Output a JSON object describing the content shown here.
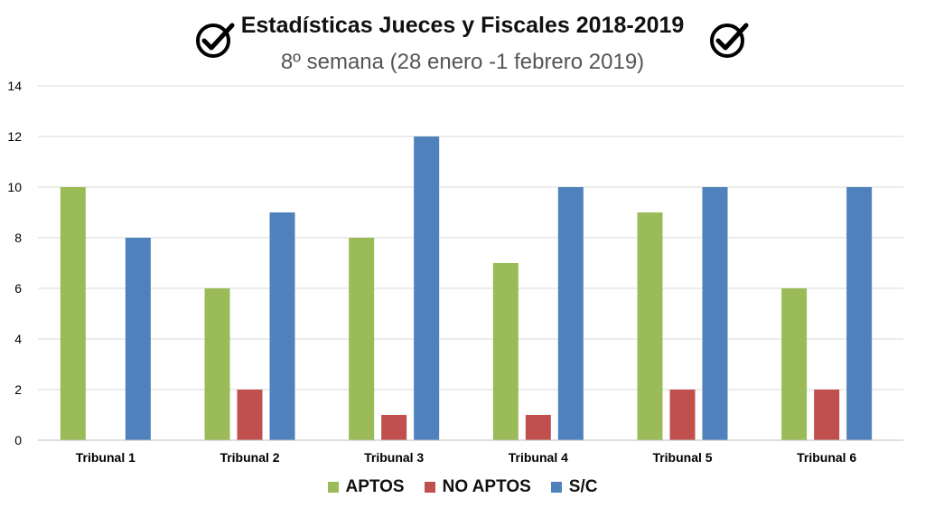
{
  "chart_data": {
    "type": "bar",
    "title": "Estadísticas Jueces y Fiscales 2018-2019",
    "subtitle": "8º semana (28 enero -1 febrero 2019)",
    "categories": [
      "Tribunal 1",
      "Tribunal 2",
      "Tribunal 3",
      "Tribunal 4",
      "Tribunal 5",
      "Tribunal 6"
    ],
    "series": [
      {
        "name": "APTOS",
        "values": [
          10,
          6,
          8,
          7,
          9,
          6
        ],
        "color": "#9bbb59"
      },
      {
        "name": "NO APTOS",
        "values": [
          0,
          2,
          1,
          1,
          2,
          2
        ],
        "color": "#c0504d"
      },
      {
        "name": "S/C",
        "values": [
          8,
          9,
          12,
          10,
          10,
          10
        ],
        "color": "#4f81bd"
      }
    ],
    "ylim": [
      0,
      14
    ],
    "yticks": [
      0,
      2,
      4,
      6,
      8,
      10,
      12,
      14
    ],
    "grid": true,
    "legend_position": "bottom"
  },
  "icons": {
    "left": "check-circle-icon",
    "right": "check-circle-icon"
  }
}
